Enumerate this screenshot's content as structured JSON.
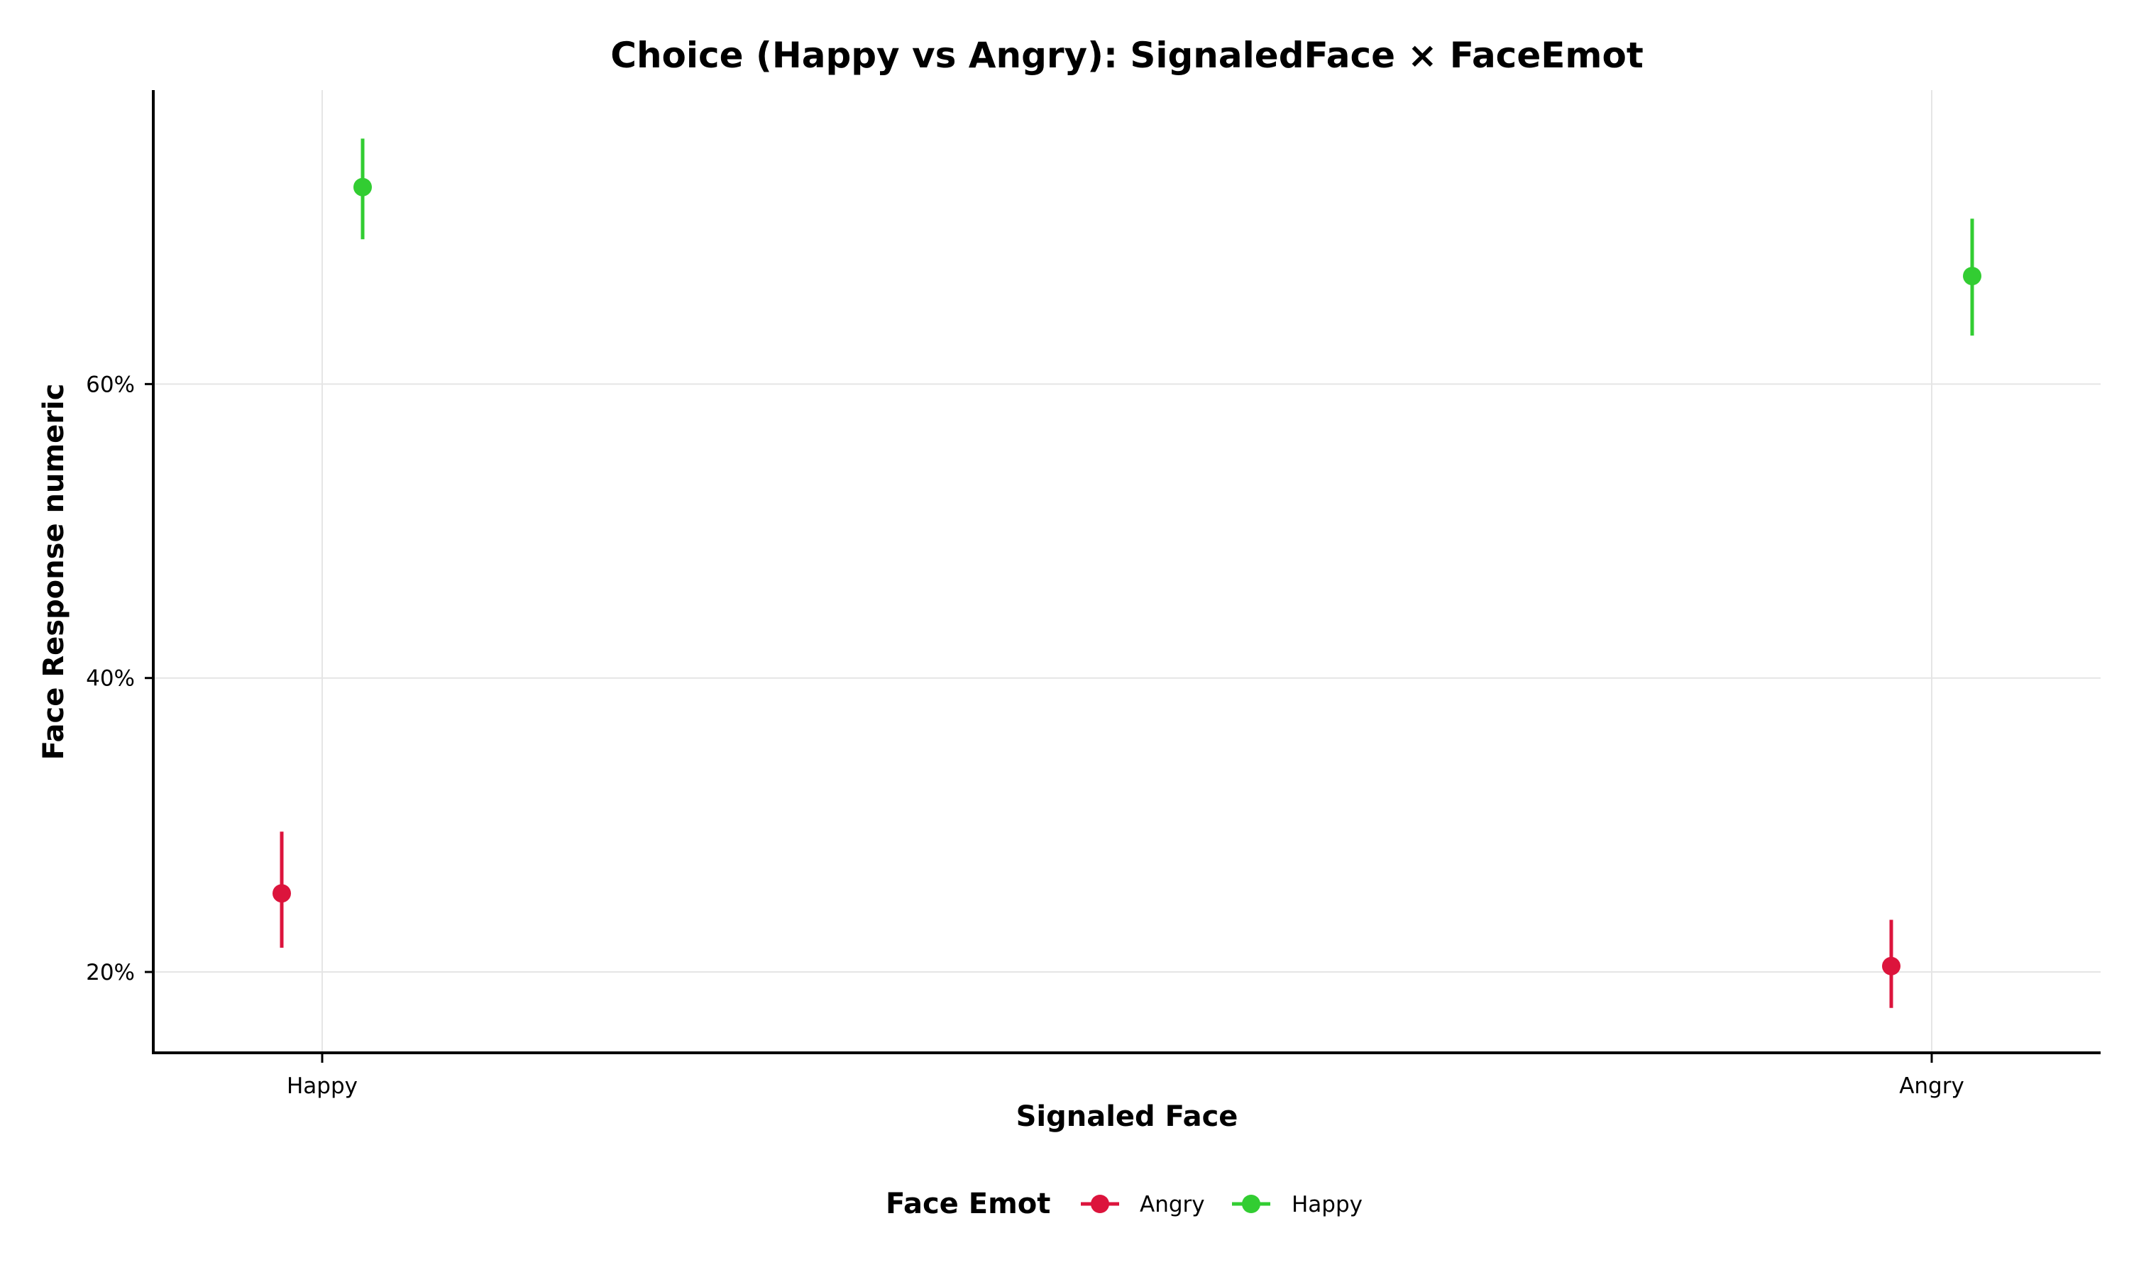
{
  "chart_data": {
    "type": "scatter",
    "title": "Choice (Happy vs Angry): SignaledFace × FaceEmot",
    "xlabel": "Signaled Face",
    "ylabel": "Face Response numeric",
    "categories": [
      "Happy",
      "Angry"
    ],
    "y_ticks": [
      0.2,
      0.4,
      0.6
    ],
    "y_tick_labels": [
      "20%",
      "40%",
      "60%"
    ],
    "ylim": [
      0.145,
      0.8
    ],
    "grid": true,
    "legend": {
      "title": "Face Emot",
      "position": "bottom"
    },
    "series": [
      {
        "name": "Angry",
        "color": "#dc143c",
        "values": [
          0.2535,
          0.204
        ],
        "ci_low": [
          0.2165,
          0.1755
        ],
        "ci_high": [
          0.2955,
          0.2355
        ]
      },
      {
        "name": "Happy",
        "color": "#32cd32",
        "values": [
          0.734,
          0.6735
        ],
        "ci_low": [
          0.6985,
          0.633
        ],
        "ci_high": [
          0.767,
          0.7125
        ]
      }
    ]
  }
}
